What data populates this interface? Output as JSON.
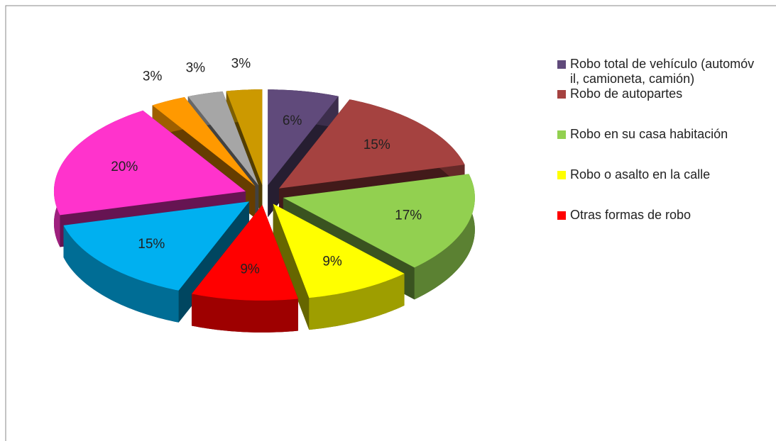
{
  "chart_data": {
    "type": "pie",
    "categories": [
      "Robo total de vehículo (automóvil, camioneta, camión)",
      "Robo de autopartes",
      "Robo en su casa habitación",
      "Robo o asalto en la calle",
      "Otras formas de robo",
      null,
      null,
      null,
      null,
      null
    ],
    "values": [
      6,
      15,
      17,
      9,
      9,
      15,
      20,
      3,
      3,
      3
    ],
    "value_labels": [
      "6%",
      "15%",
      "17%",
      "9%",
      "9%",
      "15%",
      "20%",
      "3%",
      "3%",
      "3%"
    ],
    "colors": [
      "#604a7b",
      "#a54240",
      "#92d050",
      "#ffff00",
      "#ff0000",
      "#00b0f0",
      "#ff33cc",
      "#ff9900",
      "#a6a6a6",
      "#cc9900"
    ],
    "legend": "right"
  }
}
